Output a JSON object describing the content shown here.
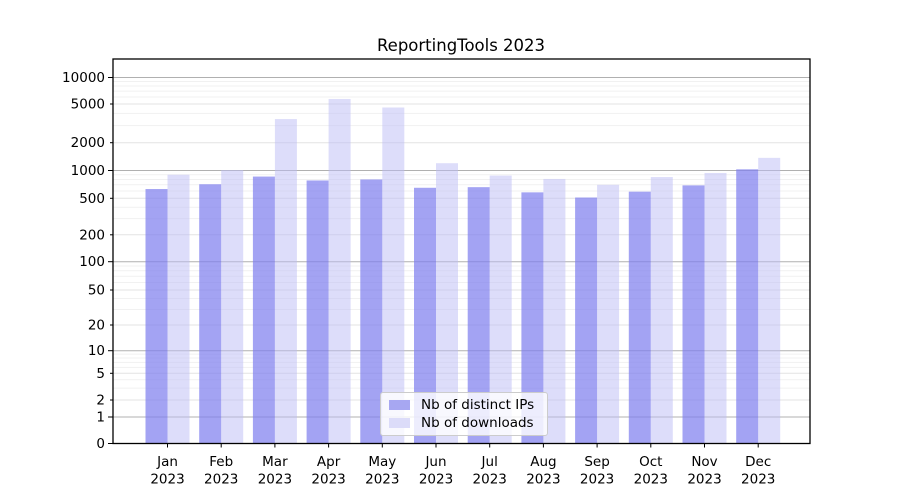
{
  "chart_data": {
    "type": "bar",
    "title": "ReportingTools 2023",
    "yscale": "symlog",
    "grid": true,
    "legend_position": "lower center",
    "xlabel": "",
    "ylabel": "",
    "ylim": [
      0,
      16000
    ],
    "yticks": [
      0,
      1,
      2,
      5,
      10,
      20,
      50,
      100,
      200,
      500,
      1000,
      2000,
      5000,
      10000
    ],
    "categories": [
      "Jan 2023",
      "Feb 2023",
      "Mar 2023",
      "Apr 2023",
      "May 2023",
      "Jun 2023",
      "Jul 2023",
      "Aug 2023",
      "Sep 2023",
      "Oct 2023",
      "Nov 2023",
      "Dec 2023"
    ],
    "series": [
      {
        "name": "Nb of distinct IPs",
        "fill": "rgba(127,127,238,0.72)",
        "legend_color": "#a7a7f2",
        "values": [
          630,
          710,
          860,
          780,
          800,
          650,
          660,
          580,
          510,
          590,
          690,
          1030
        ]
      },
      {
        "name": "Nb of downloads",
        "fill": "rgba(187,187,245,0.5)",
        "legend_color": "#dcdcf9",
        "values": [
          900,
          1010,
          3500,
          5700,
          4600,
          1200,
          880,
          810,
          700,
          850,
          940,
          1370
        ]
      }
    ],
    "grid_colors": {
      "decade": "#b0b0b0",
      "labeled_minor": "#e3e3e3",
      "minor": "#f1f1f1"
    }
  }
}
